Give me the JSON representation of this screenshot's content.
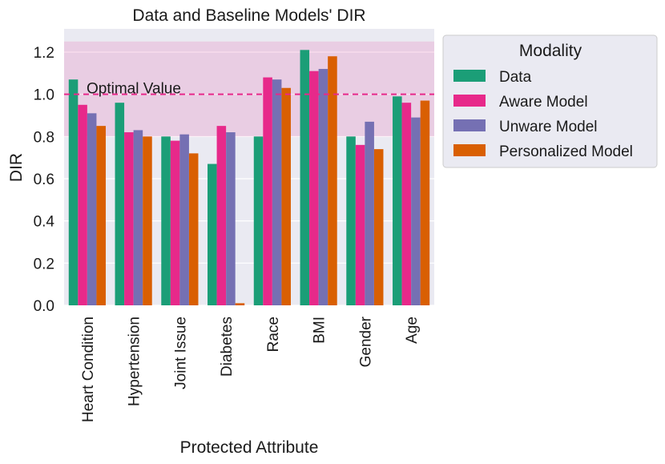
{
  "chart_data": {
    "type": "bar",
    "title": "Data and Baseline Models' DIR",
    "xlabel": "Protected Attribute",
    "ylabel": "DIR",
    "ylim": [
      0,
      1.31
    ],
    "yticks": [
      "0.0",
      "0.2",
      "0.4",
      "0.6",
      "0.8",
      "1.0",
      "1.2"
    ],
    "ytick_values": [
      0,
      0.2,
      0.4,
      0.6,
      0.8,
      1.0,
      1.2
    ],
    "categories": [
      "Heart Condition",
      "Hypertension",
      "Joint Issue",
      "Diabetes",
      "Race",
      "BMI",
      "Gender",
      "Age"
    ],
    "series": [
      {
        "name": "Data",
        "color": "#1b9e77",
        "values": [
          1.07,
          0.96,
          0.8,
          0.67,
          0.8,
          1.21,
          0.8,
          0.99
        ]
      },
      {
        "name": "Aware Model",
        "color": "#e7298a",
        "values": [
          0.95,
          0.82,
          0.78,
          0.85,
          1.08,
          1.11,
          0.76,
          0.96
        ]
      },
      {
        "name": "Unware Model",
        "color": "#7570b3",
        "values": [
          0.91,
          0.83,
          0.81,
          0.82,
          1.07,
          1.12,
          0.87,
          0.89
        ]
      },
      {
        "name": "Personalized Model",
        "color": "#d95f02",
        "values": [
          0.85,
          0.8,
          0.72,
          0.01,
          1.03,
          1.18,
          0.74,
          0.97
        ]
      }
    ],
    "band": {
      "from": 0.8,
      "to": 1.25,
      "color": "#e7298a"
    },
    "reference_line": {
      "value": 1.0,
      "label": "Optimal Value",
      "color": "#e7298a"
    },
    "legend": {
      "title": "Modality",
      "placement": "outside-right"
    },
    "grid": true,
    "background": "#eaeaf2"
  }
}
